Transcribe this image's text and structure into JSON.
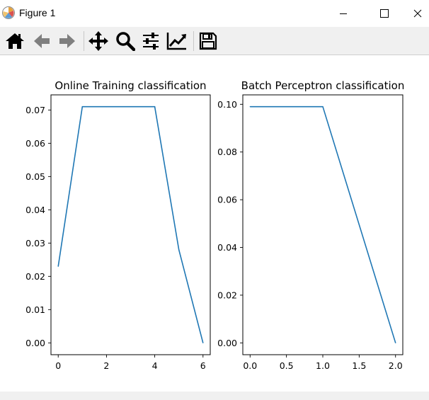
{
  "window": {
    "title": "Figure 1",
    "icon": "matplotlib-logo-icon",
    "controls": [
      "minimize-icon",
      "maximize-icon",
      "close-icon"
    ]
  },
  "toolbar": {
    "tools": [
      {
        "name": "home",
        "icon": "home-icon"
      },
      {
        "name": "back",
        "icon": "arrow-left-icon"
      },
      {
        "name": "forward",
        "icon": "arrow-right-icon"
      },
      {
        "name": "pan",
        "icon": "move-icon"
      },
      {
        "name": "zoom",
        "icon": "zoom-icon"
      },
      {
        "name": "subplots",
        "icon": "sliders-icon"
      },
      {
        "name": "customize",
        "icon": "trend-chart-icon"
      },
      {
        "name": "save",
        "icon": "save-disk-icon"
      }
    ]
  },
  "chart_data": [
    {
      "type": "line",
      "title": "Online Training classification",
      "xlabel": "",
      "ylabel": "",
      "x": [
        0,
        1,
        2,
        3,
        4,
        5,
        6
      ],
      "series": [
        {
          "values": [
            0.023,
            0.071,
            0.071,
            0.071,
            0.071,
            0.028,
            0.0
          ]
        }
      ],
      "xlim": [
        -0.3,
        6.3
      ],
      "ylim": [
        -0.00355,
        0.07455
      ],
      "xticks": [
        0,
        2,
        4,
        6
      ],
      "xtick_labels": [
        "0",
        "2",
        "4",
        "6"
      ],
      "yticks": [
        0.0,
        0.01,
        0.02,
        0.03,
        0.04,
        0.05,
        0.06,
        0.07
      ],
      "ytick_labels": [
        "0.00",
        "0.01",
        "0.02",
        "0.03",
        "0.04",
        "0.05",
        "0.06",
        "0.07"
      ],
      "grid": false,
      "color": "#1f77b4"
    },
    {
      "type": "line",
      "title": "Batch Perceptron classification",
      "xlabel": "",
      "ylabel": "",
      "x": [
        0,
        1,
        2
      ],
      "series": [
        {
          "values": [
            0.099,
            0.099,
            0.0
          ]
        }
      ],
      "xlim": [
        -0.1,
        2.1
      ],
      "ylim": [
        -0.00495,
        0.10395
      ],
      "xticks": [
        0.0,
        0.5,
        1.0,
        1.5,
        2.0
      ],
      "xtick_labels": [
        "0.0",
        "0.5",
        "1.0",
        "1.5",
        "2.0"
      ],
      "yticks": [
        0.0,
        0.02,
        0.04,
        0.06,
        0.08,
        0.1
      ],
      "ytick_labels": [
        "0.00",
        "0.02",
        "0.04",
        "0.06",
        "0.08",
        "0.10"
      ],
      "grid": false,
      "color": "#1f77b4"
    }
  ]
}
